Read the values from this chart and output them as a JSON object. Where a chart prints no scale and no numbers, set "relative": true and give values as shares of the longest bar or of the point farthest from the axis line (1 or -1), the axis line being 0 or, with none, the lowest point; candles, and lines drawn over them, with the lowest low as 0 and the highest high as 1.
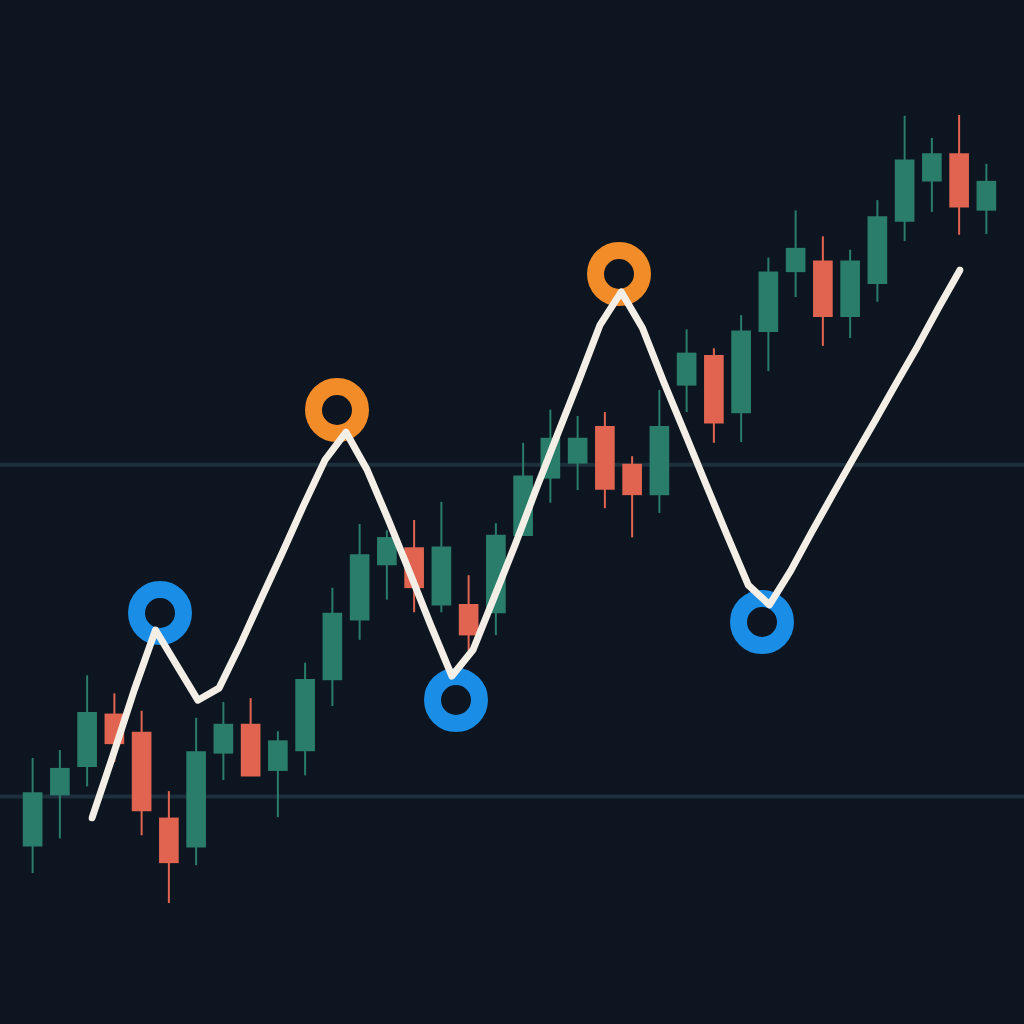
{
  "chart_data": [
    {
      "type": "candlestick",
      "relative": true,
      "categories": [
        null,
        null,
        null,
        null,
        null,
        null,
        null,
        null,
        null,
        null,
        null,
        null,
        null,
        null,
        null,
        null,
        null,
        null,
        null,
        null,
        null,
        null,
        null,
        null,
        null,
        null,
        null,
        null,
        null,
        null,
        null,
        null,
        null,
        null,
        null,
        null
      ],
      "ohlc": [
        [
          0.072,
          0.184,
          0.038,
          0.14
        ],
        [
          0.137,
          0.194,
          0.082,
          0.171
        ],
        [
          0.173,
          0.289,
          0.148,
          0.242
        ],
        [
          0.24,
          0.266,
          0.179,
          0.202
        ],
        [
          0.217,
          0.244,
          0.086,
          0.117
        ],
        [
          0.108,
          0.142,
          0,
          0.051
        ],
        [
          0.071,
          0.235,
          0.048,
          0.192
        ],
        [
          0.19,
          0.255,
          0.156,
          0.227
        ],
        [
          0.227,
          0.26,
          0.161,
          0.161
        ],
        [
          0.168,
          0.218,
          0.109,
          0.206
        ],
        [
          0.193,
          0.305,
          0.162,
          0.284
        ],
        [
          0.283,
          0.4,
          0.25,
          0.368
        ],
        [
          0.359,
          0.481,
          0.334,
          0.442
        ],
        [
          0.429,
          0.473,
          0.385,
          0.464
        ],
        [
          0.451,
          0.486,
          0.369,
          0.4
        ],
        [
          0.378,
          0.509,
          0.369,
          0.452
        ],
        [
          0.379,
          0.416,
          0.319,
          0.34
        ],
        [
          0.368,
          0.482,
          0.34,
          0.467
        ],
        [
          0.466,
          0.584,
          0.466,
          0.542
        ],
        [
          0.539,
          0.626,
          0.508,
          0.59
        ],
        [
          0.558,
          0.618,
          0.524,
          0.59
        ],
        [
          0.605,
          0.623,
          0.501,
          0.525
        ],
        [
          0.557,
          0.567,
          0.464,
          0.518
        ],
        [
          0.518,
          0.651,
          0.495,
          0.605
        ],
        [
          0.657,
          0.728,
          0.623,
          0.698
        ],
        [
          0.695,
          0.704,
          0.584,
          0.609
        ],
        [
          0.622,
          0.746,
          0.585,
          0.726
        ],
        [
          0.725,
          0.819,
          0.675,
          0.801
        ],
        [
          0.801,
          0.879,
          0.769,
          0.831
        ],
        [
          0.815,
          0.846,
          0.707,
          0.744
        ],
        [
          0.744,
          0.829,
          0.717,
          0.815
        ],
        [
          0.786,
          0.892,
          0.763,
          0.871
        ],
        [
          0.865,
          0.999,
          0.84,
          0.943
        ],
        [
          0.916,
          0.971,
          0.877,
          0.951
        ],
        [
          0.951,
          1,
          0.848,
          0.883
        ],
        [
          0.879,
          0.938,
          0.849,
          0.916
        ]
      ],
      "colors": [
        "#2a7d6b",
        "#2a7d6b",
        "#2a7d6b",
        "#e06450",
        "#e06450",
        "#e06450",
        "#2a7d6b",
        "#2a7d6b",
        "#e06450",
        "#2a7d6b",
        "#2a7d6b",
        "#2a7d6b",
        "#2a7d6b",
        "#2a7d6b",
        "#e06450",
        "#2a7d6b",
        "#e06450",
        "#2a7d6b",
        "#2a7d6b",
        "#2a7d6b",
        "#2a7d6b",
        "#e06450",
        "#e06450",
        "#2a7d6b",
        "#2a7d6b",
        "#e06450",
        "#2a7d6b",
        "#2a7d6b",
        "#2a7d6b",
        "#e06450",
        "#2a7d6b",
        "#2a7d6b",
        "#2a7d6b",
        "#2a7d6b",
        "#e06450",
        "#2a7d6b"
      ],
      "ref_lines": [
        {
          "axis": "y",
          "value": 0.556,
          "color": "#1c2f3a"
        },
        {
          "axis": "y",
          "value": 0.135,
          "color": "#1c2f3a"
        }
      ]
    },
    {
      "type": "line",
      "relative": true,
      "categories": [
        null,
        null,
        null,
        null,
        null,
        null,
        null,
        null,
        null,
        null,
        null,
        null,
        null,
        null,
        null,
        null,
        null,
        null,
        null,
        null,
        null,
        null,
        null,
        null,
        null,
        null,
        null,
        null,
        null,
        null,
        null,
        null,
        null,
        null,
        null,
        null,
        null,
        null,
        null,
        null,
        null,
        null
      ],
      "series": [
        {
          "color": "#f3efe6",
          "marker": "none",
          "line_style": "solid",
          "values": [
            0,
            0.115,
            0.234,
            0.343,
            0.279,
            0.215,
            0.237,
            0.316,
            0.401,
            0.485,
            0.571,
            0.653,
            0.704,
            0.635,
            0.544,
            0.449,
            0.352,
            0.259,
            0.307,
            0.403,
            0.5,
            0.602,
            0.701,
            0.799,
            0.9,
            0.96,
            0.894,
            0.796,
            0.703,
            0.609,
            0.516,
            0.425,
            0.389,
            0.451,
            0.522,
            0.591,
            0.659,
            0.726,
            0.794,
            0.861,
            0.932,
            1
          ]
        }
      ]
    }
  ]
}
